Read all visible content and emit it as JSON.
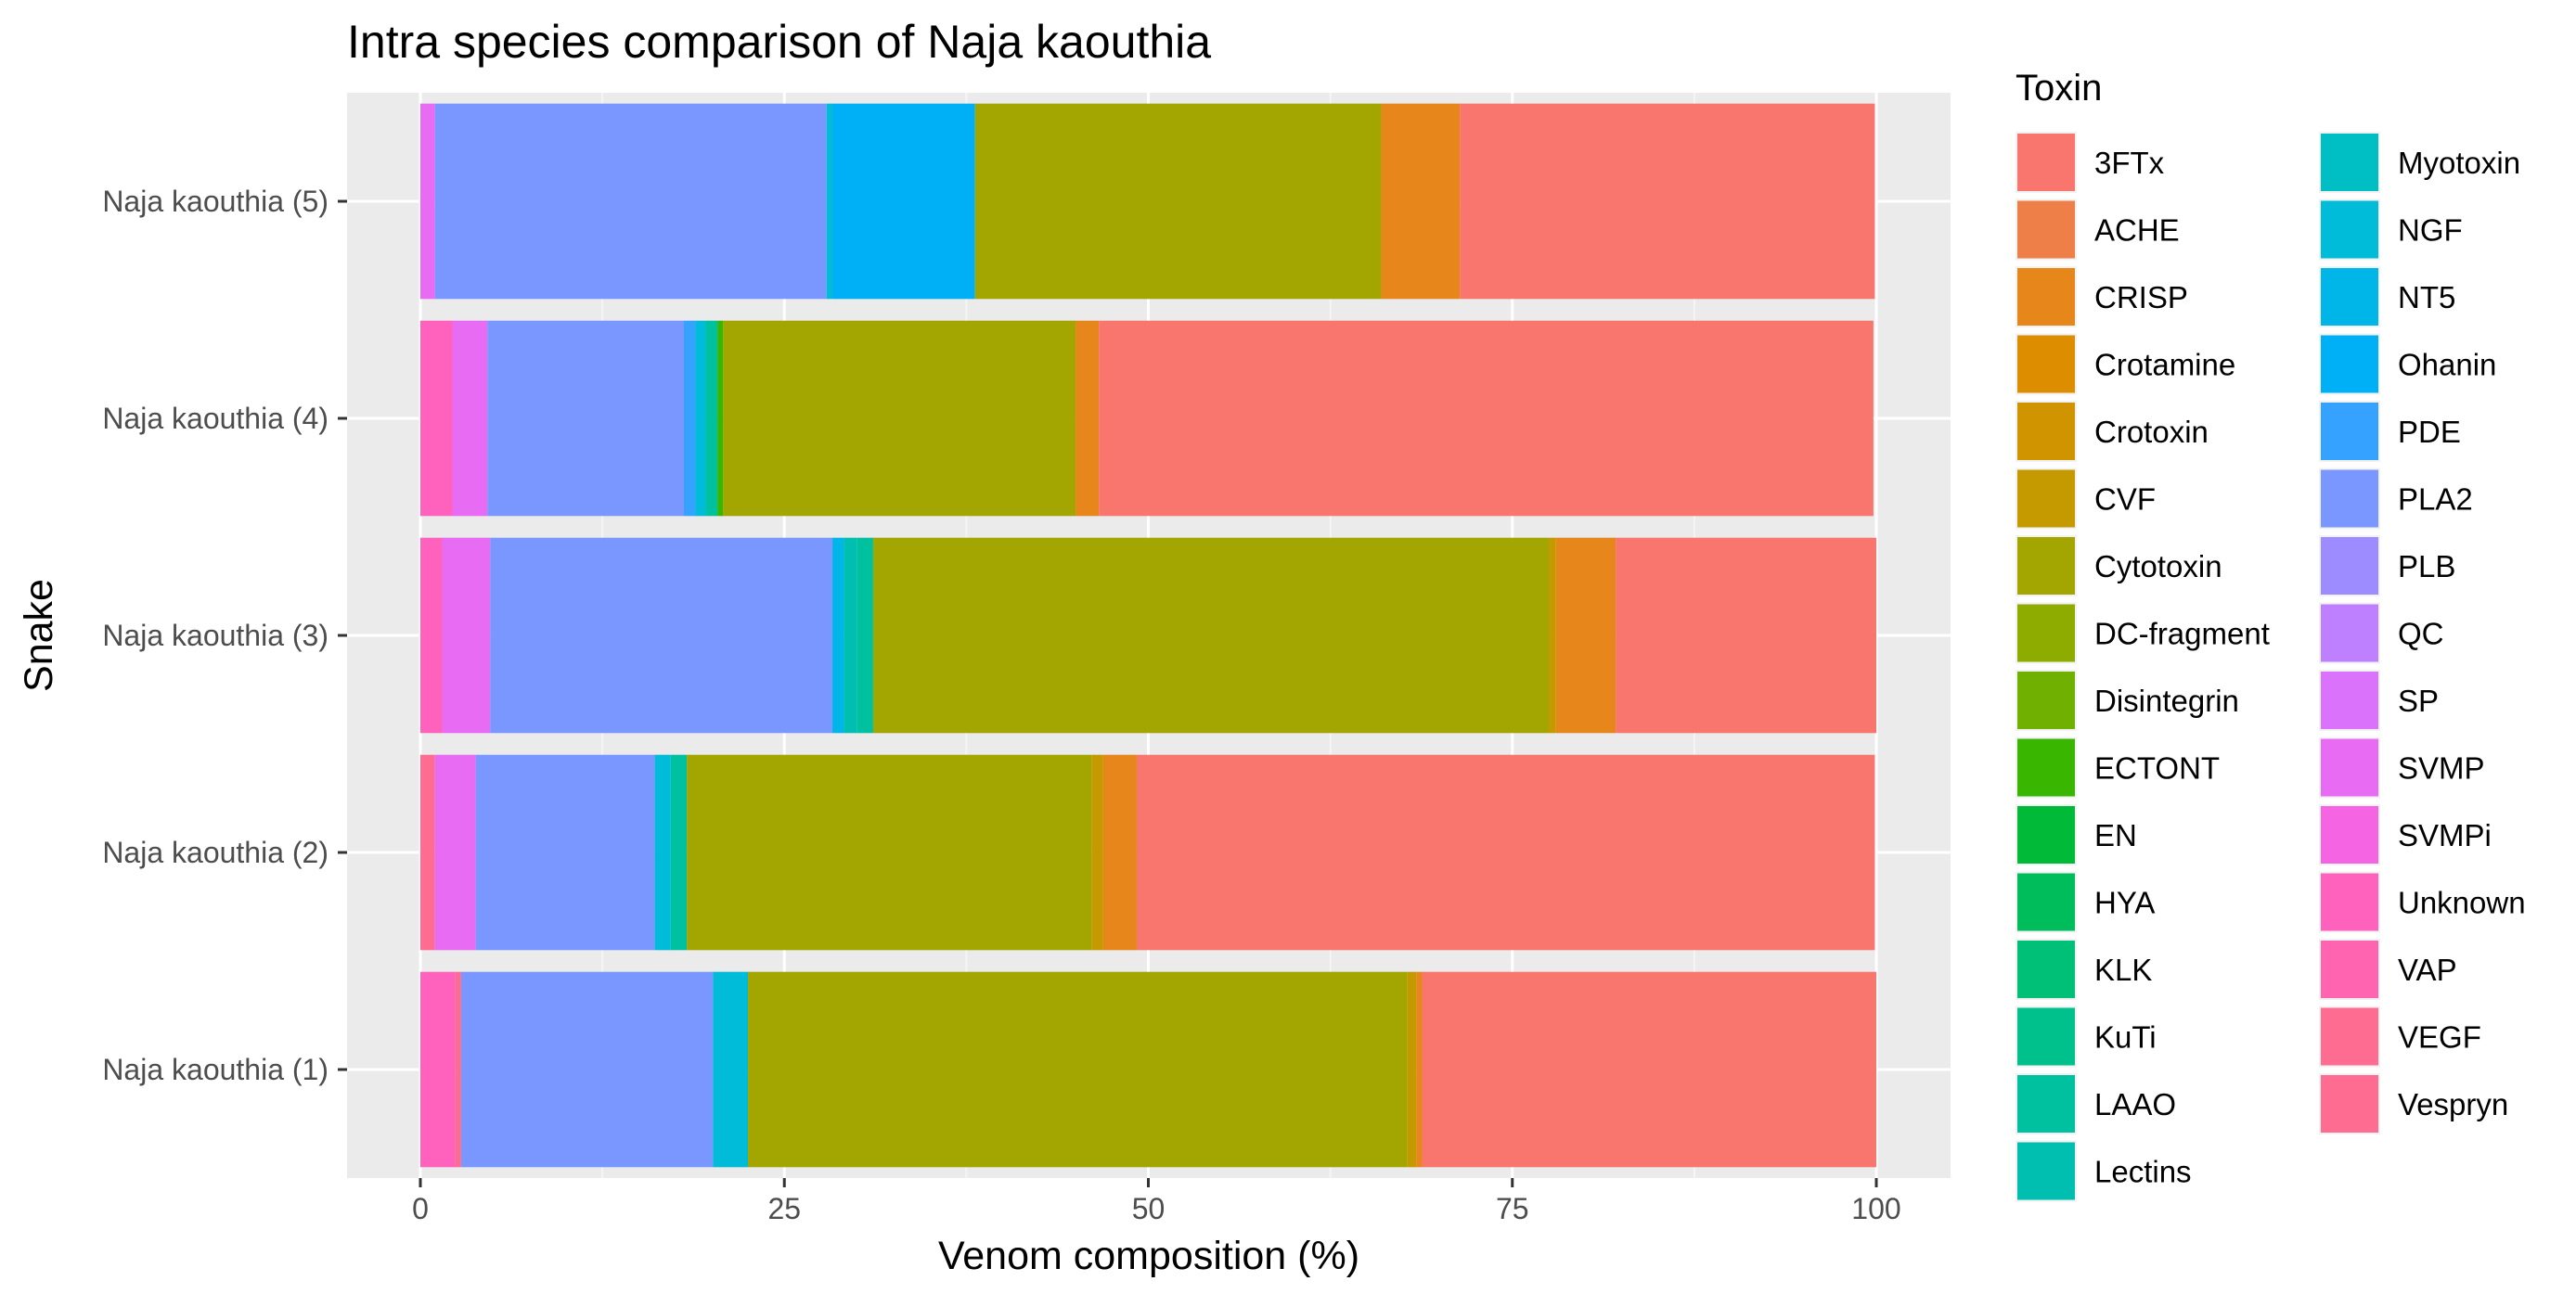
{
  "chart_data": {
    "type": "bar",
    "orientation": "horizontal",
    "stacked": true,
    "title": "Intra species comparison of Naja kaouthia",
    "xlabel": "Venom composition (%)",
    "ylabel": "Snake",
    "xlim": [
      0,
      100
    ],
    "xticks": [
      "0",
      "25",
      "50",
      "75",
      "100"
    ],
    "grid": true,
    "legend": {
      "title": "Toxin",
      "placement": "right",
      "columns": 2
    },
    "categories": [
      "Naja kaouthia (1)",
      "Naja kaouthia (2)",
      "Naja kaouthia (3)",
      "Naja kaouthia (4)",
      "Naja kaouthia (5)"
    ],
    "series": [
      {
        "name": "3FTx",
        "color": "#F8766D",
        "values": [
          31.2,
          50.7,
          17.9,
          53.2,
          28.5
        ]
      },
      {
        "name": "ACHE",
        "color": "#EF7F49",
        "values": [
          0,
          0,
          0,
          0,
          0
        ]
      },
      {
        "name": "CRISP",
        "color": "#E7861B",
        "values": [
          0.4,
          2.3,
          4.1,
          1.6,
          5.4
        ]
      },
      {
        "name": "Crotamine",
        "color": "#DD8D00",
        "values": [
          0,
          0,
          0,
          0,
          0
        ]
      },
      {
        "name": "Crotoxin",
        "color": "#D09400",
        "values": [
          0,
          0,
          0,
          0,
          0
        ]
      },
      {
        "name": "CVF",
        "color": "#C49A00",
        "values": [
          0.6,
          0.8,
          0.5,
          0,
          0
        ]
      },
      {
        "name": "Cytotoxin",
        "color": "#A3A500",
        "values": [
          45.3,
          27.8,
          46.4,
          24.2,
          27.9
        ]
      },
      {
        "name": "DC-fragment",
        "color": "#8EAB00",
        "values": [
          0,
          0,
          0,
          0,
          0
        ]
      },
      {
        "name": "Disintegrin",
        "color": "#6FB000",
        "values": [
          0,
          0,
          0,
          0,
          0
        ]
      },
      {
        "name": "ECTONT",
        "color": "#39B600",
        "values": [
          0,
          0,
          0,
          0.4,
          0
        ]
      },
      {
        "name": "EN",
        "color": "#00BA38",
        "values": [
          0,
          0,
          0,
          0,
          0
        ]
      },
      {
        "name": "HYA",
        "color": "#00BD5C",
        "values": [
          0,
          0,
          0,
          0,
          0
        ]
      },
      {
        "name": "KLK",
        "color": "#00C078",
        "values": [
          0,
          0,
          0,
          0,
          0
        ]
      },
      {
        "name": "KuTi",
        "color": "#00C08B",
        "values": [
          0,
          0,
          0,
          0,
          0
        ]
      },
      {
        "name": "LAAO",
        "color": "#00C19F",
        "values": [
          0,
          1.1,
          1.1,
          0.8,
          0
        ]
      },
      {
        "name": "Lectins",
        "color": "#00BFB1",
        "values": [
          0,
          0,
          0.9,
          0,
          0
        ]
      },
      {
        "name": "Myotoxin",
        "color": "#00BFC4",
        "values": [
          0,
          0,
          0,
          0,
          0
        ]
      },
      {
        "name": "NGF",
        "color": "#00BCD8",
        "values": [
          2.4,
          1.1,
          0,
          0.7,
          0.4
        ]
      },
      {
        "name": "NT5",
        "color": "#00B5E8",
        "values": [
          0,
          0,
          0.8,
          0,
          0
        ]
      },
      {
        "name": "Ohanin",
        "color": "#00B0F6",
        "values": [
          0,
          0,
          0,
          0,
          9.8
        ]
      },
      {
        "name": "PDE",
        "color": "#35A2FF",
        "values": [
          0,
          0,
          0,
          0.8,
          0
        ]
      },
      {
        "name": "PLA2",
        "color": "#7997FF",
        "values": [
          17.3,
          12.3,
          23.5,
          13.5,
          26.9
        ]
      },
      {
        "name": "PLB",
        "color": "#9D8CFF",
        "values": [
          0,
          0,
          0,
          0,
          0
        ]
      },
      {
        "name": "QC",
        "color": "#BF80FF",
        "values": [
          0,
          0,
          0,
          0,
          0
        ]
      },
      {
        "name": "SP",
        "color": "#DB72FB",
        "values": [
          0,
          0,
          0,
          0,
          0
        ]
      },
      {
        "name": "SVMP",
        "color": "#E76BF3",
        "values": [
          0,
          2.8,
          3.3,
          2.4,
          1.0
        ]
      },
      {
        "name": "SVMPi",
        "color": "#F564E3",
        "values": [
          0,
          0,
          0,
          0,
          0
        ]
      },
      {
        "name": "Unknown",
        "color": "#FF62BC",
        "values": [
          2.4,
          0,
          1.5,
          2.2,
          0
        ]
      },
      {
        "name": "VAP",
        "color": "#FF64B0",
        "values": [
          0,
          0,
          0,
          0,
          0
        ]
      },
      {
        "name": "VEGF",
        "color": "#FF6C91",
        "values": [
          0.4,
          1.0,
          0,
          0,
          0
        ]
      },
      {
        "name": "Vespryn",
        "color": "#FF6C91",
        "values": [
          0,
          0,
          0,
          0,
          0
        ]
      }
    ],
    "stack_order": [
      "Unknown",
      "VEGF",
      "SVMP",
      "PLA2",
      "PDE",
      "NT5",
      "NGF",
      "Lectins",
      "LAAO",
      "ECTONT",
      "Ohanin",
      "Cytotoxin",
      "CVF",
      "CRISP",
      "3FTx"
    ]
  },
  "colors": {
    "panel_background": "#EBEBEB",
    "grid_major": "#FFFFFF",
    "grid_minor": "#F5F5F5",
    "tick_text": "#4D4D4D"
  }
}
